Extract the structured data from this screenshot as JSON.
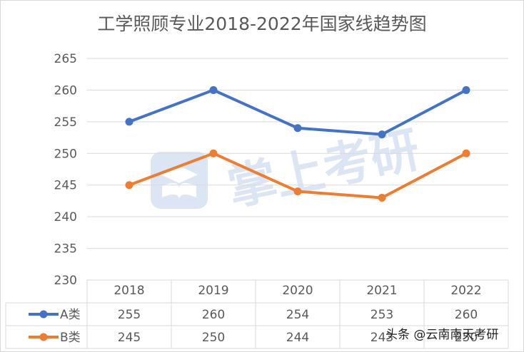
{
  "chart_data": {
    "type": "line",
    "title": "工学照顾专业2018-2022年国家线趋势图",
    "categories": [
      "2018",
      "2019",
      "2020",
      "2021",
      "2022"
    ],
    "series": [
      {
        "name": "A类",
        "values": [
          255,
          260,
          254,
          253,
          260
        ],
        "color": "#4472c4"
      },
      {
        "name": "B类",
        "values": [
          245,
          250,
          244,
          243,
          250
        ],
        "color": "#ed7d31"
      }
    ],
    "ylim": [
      230,
      265
    ],
    "yticks": [
      "265",
      "260",
      "255",
      "250",
      "245",
      "240",
      "235",
      "230"
    ],
    "grid": true,
    "legend": "data-table"
  },
  "watermark": {
    "text": "掌上考研",
    "icon": "graduation-book-icon"
  },
  "footer_watermark": "头条 @云南南天考研"
}
